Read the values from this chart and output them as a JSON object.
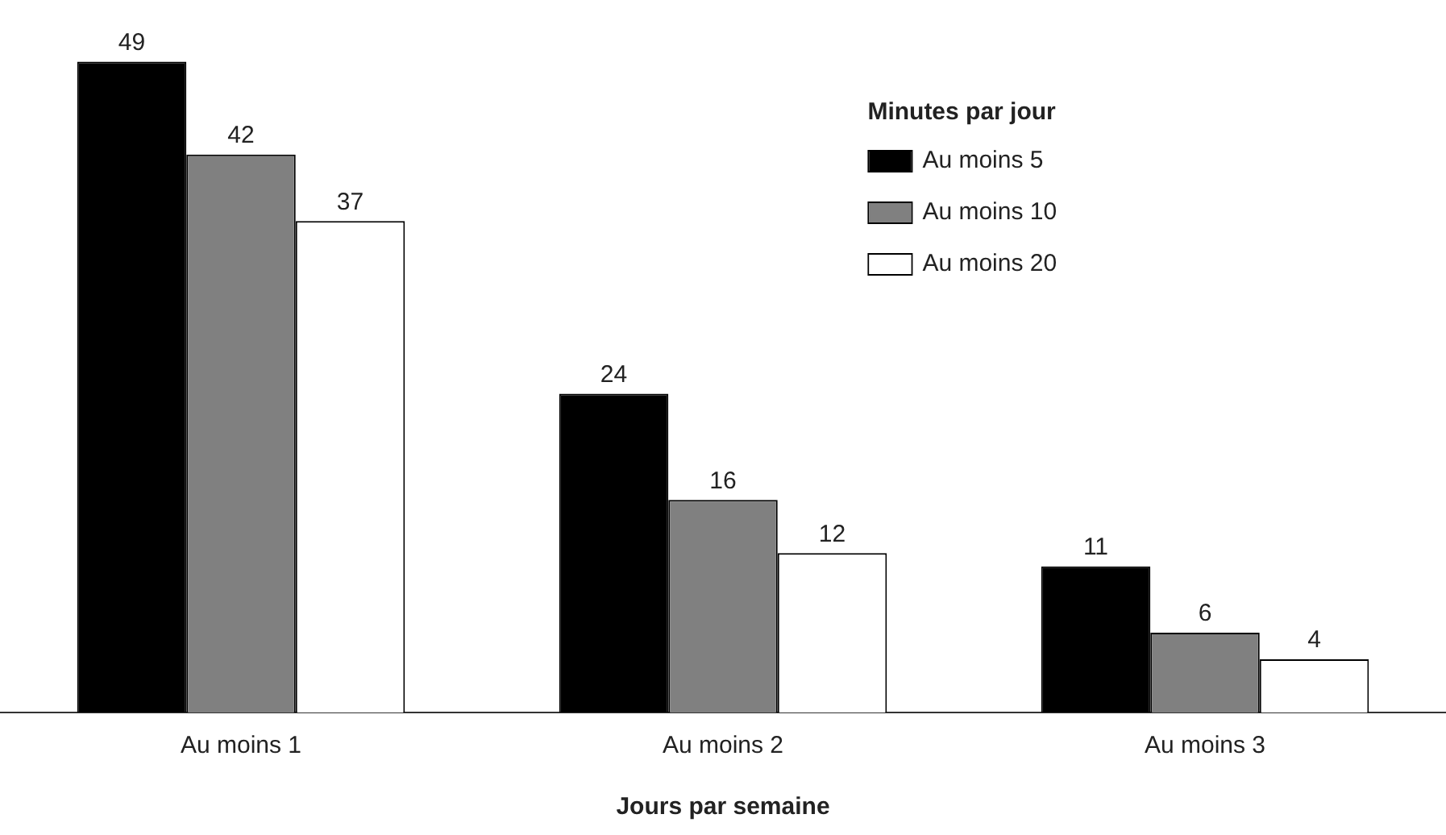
{
  "chart_data": {
    "type": "bar",
    "xlabel": "Jours par semaine",
    "legend_title": "Minutes par jour",
    "legend": "top right",
    "data_labels": true,
    "grid": false,
    "tick_labels": "x",
    "categories": [
      "Au moins 1",
      "Au moins 2",
      "Au moins 3"
    ],
    "series": [
      {
        "name": "Au moins 5",
        "color": "#000000",
        "values": [
          49,
          24,
          11
        ]
      },
      {
        "name": "Au moins 10",
        "color": "#808080",
        "values": [
          42,
          16,
          6
        ]
      },
      {
        "name": "Au moins 20",
        "color": "#ffffff",
        "values": [
          37,
          12,
          4
        ]
      }
    ]
  }
}
